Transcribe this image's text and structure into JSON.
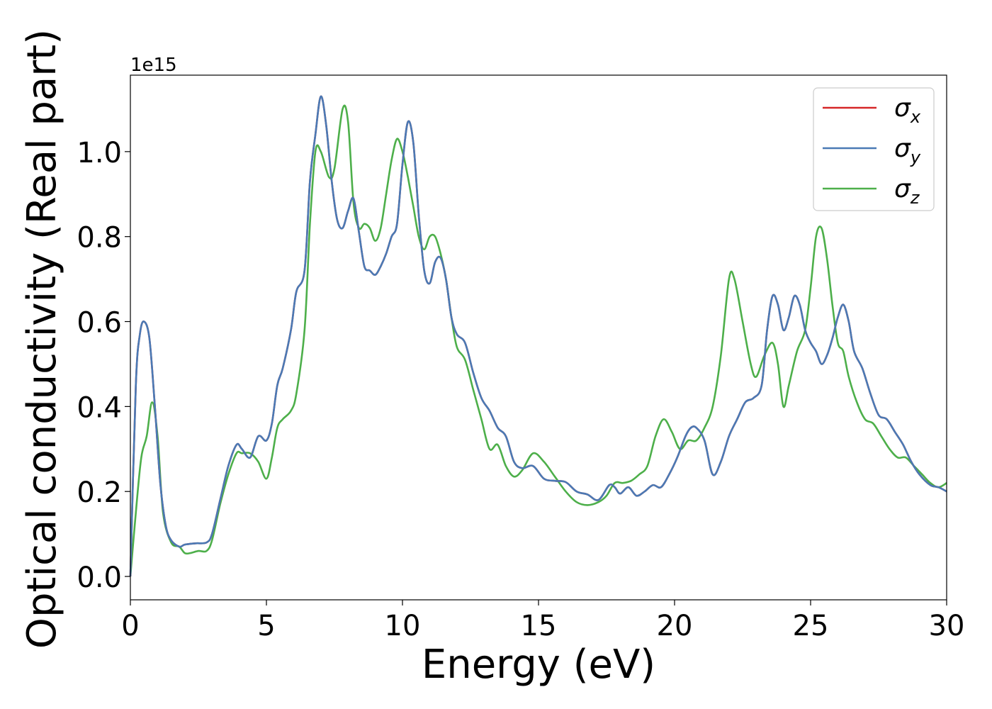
{
  "chart_data": {
    "type": "line",
    "xlabel": "Energy (eV)",
    "ylabel": "Optical conductivity (Real part)",
    "offset_label": "1e15",
    "xlim": [
      0,
      30
    ],
    "ylim": [
      -0.055,
      1.18
    ],
    "xticks": [
      0,
      5,
      10,
      15,
      20,
      25,
      30
    ],
    "xtick_labels": [
      "0",
      "5",
      "10",
      "15",
      "20",
      "25",
      "30"
    ],
    "yticks": [
      0.0,
      0.2,
      0.4,
      0.6,
      0.8,
      1.0
    ],
    "ytick_labels": [
      "0.0",
      "0.2",
      "0.4",
      "0.6",
      "0.8",
      "1.0"
    ],
    "grid": false,
    "legend_position": "top-right",
    "series": [
      {
        "name": "σx",
        "label_base": "σ",
        "label_sub": "x",
        "color": "#d62728",
        "x": [
          0,
          0.2,
          0.35,
          0.5,
          0.7,
          0.9,
          1.1,
          1.3,
          1.5,
          1.8,
          2.0,
          2.4,
          2.8,
          3.0,
          3.3,
          3.6,
          3.9,
          4.1,
          4.4,
          4.7,
          5.0,
          5.2,
          5.4,
          5.6,
          5.9,
          6.1,
          6.4,
          6.6,
          6.8,
          7.0,
          7.2,
          7.4,
          7.6,
          7.8,
          8.0,
          8.2,
          8.4,
          8.6,
          8.8,
          9.0,
          9.2,
          9.4,
          9.6,
          9.8,
          10.0,
          10.2,
          10.4,
          10.6,
          10.8,
          11.0,
          11.2,
          11.4,
          11.6,
          11.8,
          12.0,
          12.3,
          12.6,
          12.9,
          13.2,
          13.5,
          13.8,
          14.1,
          14.4,
          14.8,
          15.2,
          15.6,
          16.0,
          16.4,
          16.8,
          17.2,
          17.6,
          17.8,
          18.0,
          18.3,
          18.6,
          18.9,
          19.2,
          19.5,
          19.8,
          20.1,
          20.4,
          20.6,
          20.8,
          21.1,
          21.4,
          21.7,
          22.0,
          22.3,
          22.6,
          22.9,
          23.2,
          23.4,
          23.6,
          23.8,
          24.0,
          24.2,
          24.4,
          24.6,
          24.8,
          25.0,
          25.2,
          25.4,
          25.6,
          25.8,
          26.0,
          26.2,
          26.4,
          26.6,
          26.9,
          27.2,
          27.5,
          27.8,
          28.1,
          28.4,
          28.7,
          29.0,
          29.4,
          29.7,
          30.0
        ],
        "values": [
          0.0,
          0.45,
          0.57,
          0.6,
          0.56,
          0.4,
          0.22,
          0.12,
          0.085,
          0.07,
          0.075,
          0.078,
          0.08,
          0.1,
          0.18,
          0.26,
          0.31,
          0.3,
          0.28,
          0.33,
          0.32,
          0.36,
          0.45,
          0.49,
          0.58,
          0.67,
          0.72,
          0.93,
          1.04,
          1.13,
          1.06,
          0.93,
          0.84,
          0.82,
          0.86,
          0.89,
          0.81,
          0.73,
          0.72,
          0.71,
          0.73,
          0.76,
          0.8,
          0.83,
          0.97,
          1.07,
          1.02,
          0.85,
          0.72,
          0.69,
          0.74,
          0.75,
          0.7,
          0.61,
          0.57,
          0.55,
          0.48,
          0.42,
          0.39,
          0.35,
          0.33,
          0.27,
          0.255,
          0.26,
          0.23,
          0.225,
          0.222,
          0.2,
          0.193,
          0.18,
          0.215,
          0.21,
          0.195,
          0.21,
          0.19,
          0.2,
          0.215,
          0.21,
          0.24,
          0.28,
          0.33,
          0.35,
          0.35,
          0.32,
          0.24,
          0.27,
          0.33,
          0.37,
          0.41,
          0.42,
          0.45,
          0.58,
          0.66,
          0.64,
          0.58,
          0.61,
          0.66,
          0.64,
          0.58,
          0.55,
          0.53,
          0.5,
          0.52,
          0.56,
          0.61,
          0.64,
          0.6,
          0.53,
          0.49,
          0.43,
          0.38,
          0.37,
          0.34,
          0.31,
          0.27,
          0.24,
          0.215,
          0.21,
          0.2
        ]
      },
      {
        "name": "σy",
        "label_base": "σ",
        "label_sub": "y",
        "color": "#4a7ab5",
        "x": [
          0,
          0.2,
          0.35,
          0.5,
          0.7,
          0.9,
          1.1,
          1.3,
          1.5,
          1.8,
          2.0,
          2.4,
          2.8,
          3.0,
          3.3,
          3.6,
          3.9,
          4.1,
          4.4,
          4.7,
          5.0,
          5.2,
          5.4,
          5.6,
          5.9,
          6.1,
          6.4,
          6.6,
          6.8,
          7.0,
          7.2,
          7.4,
          7.6,
          7.8,
          8.0,
          8.2,
          8.4,
          8.6,
          8.8,
          9.0,
          9.2,
          9.4,
          9.6,
          9.8,
          10.0,
          10.2,
          10.4,
          10.6,
          10.8,
          11.0,
          11.2,
          11.4,
          11.6,
          11.8,
          12.0,
          12.3,
          12.6,
          12.9,
          13.2,
          13.5,
          13.8,
          14.1,
          14.4,
          14.8,
          15.2,
          15.6,
          16.0,
          16.4,
          16.8,
          17.2,
          17.6,
          17.8,
          18.0,
          18.3,
          18.6,
          18.9,
          19.2,
          19.5,
          19.8,
          20.1,
          20.4,
          20.6,
          20.8,
          21.1,
          21.4,
          21.7,
          22.0,
          22.3,
          22.6,
          22.9,
          23.2,
          23.4,
          23.6,
          23.8,
          24.0,
          24.2,
          24.4,
          24.6,
          24.8,
          25.0,
          25.2,
          25.4,
          25.6,
          25.8,
          26.0,
          26.2,
          26.4,
          26.6,
          26.9,
          27.2,
          27.5,
          27.8,
          28.1,
          28.4,
          28.7,
          29.0,
          29.4,
          29.7,
          30.0
        ],
        "values": [
          0.0,
          0.45,
          0.57,
          0.6,
          0.56,
          0.4,
          0.22,
          0.12,
          0.085,
          0.07,
          0.075,
          0.078,
          0.08,
          0.1,
          0.18,
          0.26,
          0.31,
          0.3,
          0.28,
          0.33,
          0.32,
          0.36,
          0.45,
          0.49,
          0.58,
          0.67,
          0.72,
          0.93,
          1.04,
          1.13,
          1.06,
          0.93,
          0.84,
          0.82,
          0.86,
          0.89,
          0.81,
          0.73,
          0.72,
          0.71,
          0.73,
          0.76,
          0.8,
          0.83,
          0.97,
          1.07,
          1.02,
          0.85,
          0.72,
          0.69,
          0.74,
          0.75,
          0.7,
          0.61,
          0.57,
          0.55,
          0.48,
          0.42,
          0.39,
          0.35,
          0.33,
          0.27,
          0.255,
          0.26,
          0.23,
          0.225,
          0.222,
          0.2,
          0.193,
          0.18,
          0.215,
          0.21,
          0.195,
          0.21,
          0.19,
          0.2,
          0.215,
          0.21,
          0.24,
          0.28,
          0.33,
          0.35,
          0.35,
          0.32,
          0.24,
          0.27,
          0.33,
          0.37,
          0.41,
          0.42,
          0.45,
          0.58,
          0.66,
          0.64,
          0.58,
          0.61,
          0.66,
          0.64,
          0.58,
          0.55,
          0.53,
          0.5,
          0.52,
          0.56,
          0.61,
          0.64,
          0.6,
          0.53,
          0.49,
          0.43,
          0.38,
          0.37,
          0.34,
          0.31,
          0.27,
          0.24,
          0.215,
          0.21,
          0.2
        ]
      },
      {
        "name": "σz",
        "label_base": "σ",
        "label_sub": "z",
        "color": "#4daf4a",
        "x": [
          0,
          0.2,
          0.4,
          0.6,
          0.8,
          1.0,
          1.2,
          1.5,
          1.8,
          2.0,
          2.2,
          2.5,
          2.8,
          3.0,
          3.3,
          3.6,
          3.9,
          4.1,
          4.4,
          4.7,
          5.0,
          5.2,
          5.4,
          5.6,
          5.9,
          6.1,
          6.4,
          6.6,
          6.8,
          7.0,
          7.3,
          7.5,
          7.8,
          8.0,
          8.2,
          8.4,
          8.6,
          8.8,
          9.0,
          9.2,
          9.4,
          9.6,
          9.8,
          10.0,
          10.2,
          10.4,
          10.6,
          10.8,
          11.0,
          11.2,
          11.4,
          11.6,
          11.8,
          12.0,
          12.3,
          12.6,
          12.9,
          13.2,
          13.5,
          13.8,
          14.1,
          14.4,
          14.8,
          15.2,
          15.6,
          16.0,
          16.4,
          16.8,
          17.2,
          17.5,
          17.8,
          18.1,
          18.4,
          18.7,
          19.0,
          19.3,
          19.6,
          19.9,
          20.2,
          20.5,
          20.8,
          21.1,
          21.4,
          21.7,
          22.0,
          22.2,
          22.5,
          22.8,
          23.0,
          23.3,
          23.6,
          23.8,
          24.0,
          24.2,
          24.5,
          24.8,
          25.0,
          25.2,
          25.4,
          25.6,
          25.8,
          26.0,
          26.2,
          26.4,
          26.7,
          27.0,
          27.3,
          27.6,
          27.9,
          28.2,
          28.5,
          28.8,
          29.1,
          29.4,
          29.7,
          30.0
        ],
        "values": [
          0.0,
          0.15,
          0.28,
          0.33,
          0.41,
          0.33,
          0.15,
          0.08,
          0.07,
          0.055,
          0.055,
          0.06,
          0.06,
          0.085,
          0.17,
          0.24,
          0.29,
          0.29,
          0.29,
          0.27,
          0.23,
          0.28,
          0.35,
          0.37,
          0.39,
          0.43,
          0.58,
          0.83,
          1.0,
          1.0,
          0.94,
          0.96,
          1.1,
          1.07,
          0.88,
          0.82,
          0.83,
          0.82,
          0.79,
          0.82,
          0.9,
          0.98,
          1.03,
          1.0,
          0.94,
          0.87,
          0.8,
          0.77,
          0.8,
          0.8,
          0.76,
          0.7,
          0.61,
          0.54,
          0.51,
          0.44,
          0.37,
          0.3,
          0.31,
          0.26,
          0.235,
          0.25,
          0.29,
          0.27,
          0.235,
          0.2,
          0.175,
          0.168,
          0.175,
          0.19,
          0.22,
          0.22,
          0.225,
          0.24,
          0.26,
          0.33,
          0.37,
          0.34,
          0.3,
          0.32,
          0.32,
          0.35,
          0.4,
          0.52,
          0.7,
          0.7,
          0.6,
          0.5,
          0.47,
          0.52,
          0.55,
          0.5,
          0.4,
          0.45,
          0.53,
          0.58,
          0.68,
          0.8,
          0.82,
          0.75,
          0.64,
          0.55,
          0.53,
          0.47,
          0.41,
          0.37,
          0.36,
          0.33,
          0.3,
          0.28,
          0.28,
          0.26,
          0.24,
          0.22,
          0.21,
          0.22
        ]
      }
    ]
  }
}
